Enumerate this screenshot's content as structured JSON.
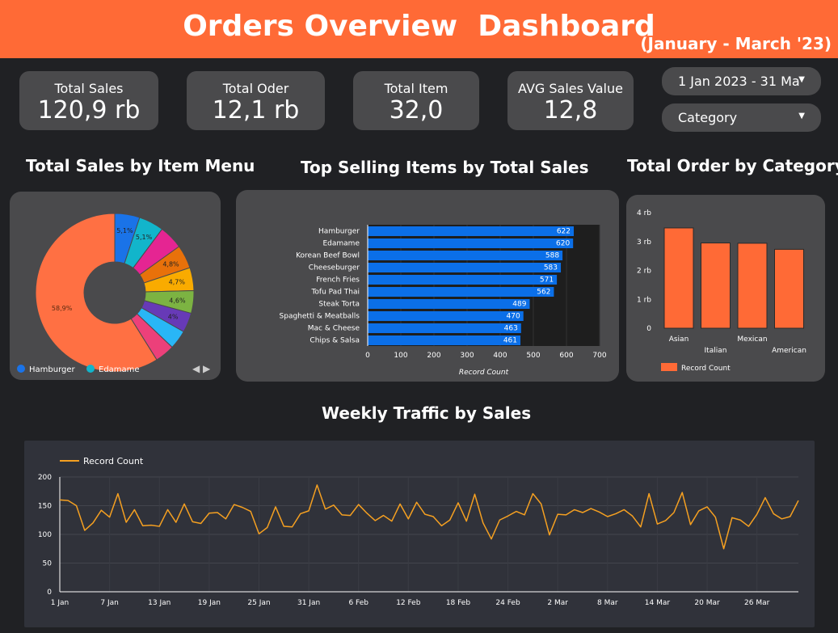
{
  "header": {
    "title": "Orders Overview  Dashboard",
    "subtitle": "(January - March '23)"
  },
  "kpis": [
    {
      "label": "Total Sales",
      "value": "120,9 rb"
    },
    {
      "label": "Total Oder",
      "value": "12,1 rb"
    },
    {
      "label": "Total Item",
      "value": "32,0"
    },
    {
      "label": "AVG Sales Value",
      "value": "12,8"
    }
  ],
  "filters": {
    "date_range": "1 Jan 2023 - 31 Ma",
    "category": "Category"
  },
  "colors": {
    "header": "#ff6a36",
    "bar_blue": "#0b6fe8",
    "bar_orange": "#ff6a36",
    "line": "#f5a021",
    "panel": "#4a4a4c"
  },
  "chart_data": [
    {
      "type": "pie",
      "title": "Total Sales by Item Menu",
      "donut": true,
      "slices": [
        {
          "value": 5.1,
          "label": "5,1%",
          "color": "#1a73e8"
        },
        {
          "value": 5.1,
          "label": "5,1%",
          "color": "#12b5cb"
        },
        {
          "value": 4.9,
          "label": "",
          "color": "#e52592"
        },
        {
          "value": 4.8,
          "label": "4,8%",
          "color": "#e8710a"
        },
        {
          "value": 4.7,
          "label": "4,7%",
          "color": "#f9ab00"
        },
        {
          "value": 4.6,
          "label": "4,6%",
          "color": "#7cb342"
        },
        {
          "value": 4.0,
          "label": "4%",
          "color": "#673ab7"
        },
        {
          "value": 3.9,
          "label": "",
          "color": "#29b6f6"
        },
        {
          "value": 4.0,
          "label": "",
          "color": "#ec407a"
        },
        {
          "value": 58.9,
          "label": "58,9%",
          "color": "#ff7043"
        }
      ],
      "legend": [
        {
          "name": "Hamburger",
          "color": "#1a73e8"
        },
        {
          "name": "Edamame",
          "color": "#12b5cb"
        }
      ],
      "legend_nav": "◀ ▶"
    },
    {
      "type": "bar",
      "orientation": "horizontal",
      "title": "Top Selling Items by Total Sales",
      "categories": [
        "Hamburger",
        "Edamame",
        "Korean Beef Bowl",
        "Cheeseburger",
        "French Fries",
        "Tofu Pad Thai",
        "Steak Torta",
        "Spaghetti & Meatballs",
        "Mac & Cheese",
        "Chips & Salsa"
      ],
      "values": [
        622,
        620,
        588,
        583,
        571,
        562,
        489,
        470,
        463,
        461
      ],
      "xlabel": "Record Count",
      "xlim": [
        0,
        700
      ],
      "xticks": [
        0,
        100,
        200,
        300,
        400,
        500,
        600,
        700
      ],
      "color": "#0b6fe8"
    },
    {
      "type": "bar",
      "title": "Total Order by Category",
      "categories": [
        "Asian",
        "Italian",
        "Mexican",
        "American"
      ],
      "values": [
        3470,
        2950,
        2940,
        2730
      ],
      "ylim": [
        0,
        4000
      ],
      "yticks": [
        "0",
        "1 rb",
        "2 rb",
        "3 rb",
        "4 rb"
      ],
      "series_name": "Record Count",
      "color": "#ff6a36"
    },
    {
      "type": "line",
      "title": "Weekly Traffic by Sales",
      "series_name": "Record Count",
      "ylim": [
        0,
        200
      ],
      "yticks": [
        0,
        50,
        100,
        150,
        200
      ],
      "xticks": [
        "1 Jan",
        "7 Jan",
        "13 Jan",
        "19 Jan",
        "25 Jan",
        "31 Jan",
        "6 Feb",
        "12 Feb",
        "18 Feb",
        "24 Feb",
        "2 Mar",
        "8 Mar",
        "14 Mar",
        "20 Mar",
        "26 Mar"
      ],
      "x_start": "2023-01-01",
      "x_end": "2023-03-31",
      "values": [
        160,
        159,
        150,
        107,
        120,
        142,
        130,
        171,
        121,
        143,
        115,
        116,
        114,
        143,
        121,
        153,
        122,
        119,
        137,
        138,
        127,
        152,
        147,
        140,
        101,
        112,
        148,
        114,
        113,
        136,
        141,
        186,
        144,
        151,
        134,
        133,
        152,
        137,
        124,
        133,
        123,
        153,
        127,
        156,
        135,
        131,
        115,
        125,
        155,
        123,
        170,
        120,
        92,
        125,
        132,
        140,
        134,
        171,
        153,
        99,
        135,
        134,
        143,
        138,
        145,
        139,
        131,
        136,
        143,
        132,
        113,
        171,
        118,
        124,
        138,
        173,
        117,
        141,
        148,
        130,
        75,
        129,
        125,
        114,
        135,
        164,
        136,
        127,
        131,
        159
      ]
    }
  ]
}
